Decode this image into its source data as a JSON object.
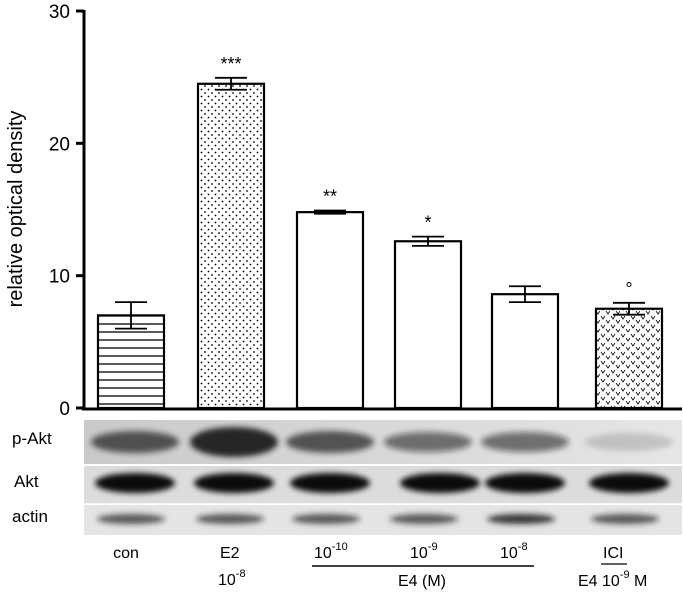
{
  "chart_data": {
    "type": "bar",
    "ylabel": "relative optical density",
    "ylim": [
      0,
      30
    ],
    "yticks": [
      0,
      10,
      20,
      30
    ],
    "categories": [
      "con",
      "E2 10-8",
      "E4 10-10",
      "E4 10-9",
      "E4 10-8",
      "ICI E4 10-9 M"
    ],
    "values": [
      7.0,
      24.5,
      14.8,
      12.6,
      8.6,
      7.5
    ],
    "errors": [
      1.0,
      0.45,
      0.12,
      0.35,
      0.6,
      0.45
    ],
    "significance": [
      "",
      "***",
      "**",
      "*",
      "",
      "°"
    ],
    "patterns": [
      "horizontal-lines",
      "dots",
      "none",
      "none",
      "none",
      "dots"
    ],
    "grid": false,
    "legend": "none"
  },
  "blot": {
    "rows": [
      "p-Akt",
      "Akt",
      "actin"
    ]
  },
  "labels": {
    "con": "con",
    "e2_top": "E2",
    "e2_base": "10",
    "e2_exp": "-8",
    "e4_1_base": "10",
    "e4_1_exp": "-10",
    "e4_2_base": "10",
    "e4_2_exp": "-9",
    "e4_3_base": "10",
    "e4_3_exp": "-8",
    "e4_group": "E4 (M)",
    "ici_top": "ICI",
    "ici_prefix": "E4 10",
    "ici_exp": "-9",
    "ici_suffix": " M"
  }
}
